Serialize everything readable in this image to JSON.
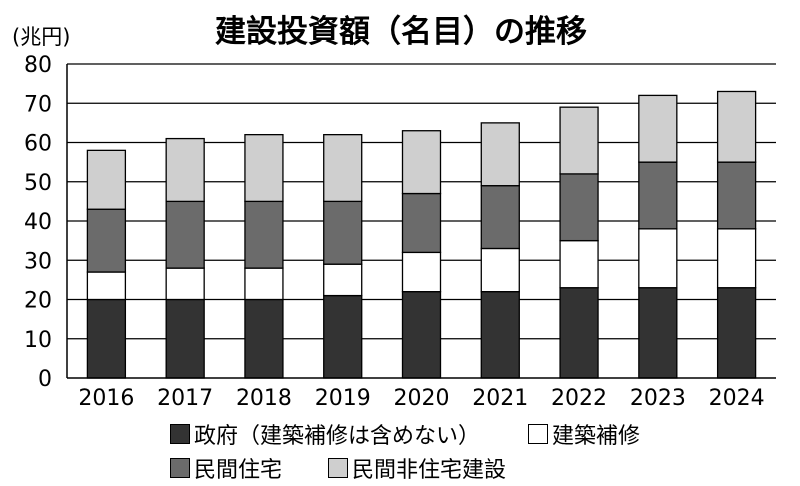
{
  "chart_data": {
    "type": "bar",
    "stacked": true,
    "title": "建設投資額（名目）の推移",
    "unit_label": "(兆円)",
    "categories": [
      "2016",
      "2017",
      "2018",
      "2019",
      "2020",
      "2021",
      "2022",
      "2023",
      "2024"
    ],
    "ylim": [
      0,
      80
    ],
    "yticks": [
      0,
      10,
      20,
      30,
      40,
      50,
      60,
      70,
      80
    ],
    "grid": true,
    "legend_position": "bottom",
    "series": [
      {
        "name": "政府（建築補修は含めない）",
        "color": "#333333",
        "values": [
          20,
          20,
          20,
          21,
          22,
          22,
          23,
          23,
          23
        ]
      },
      {
        "name": "建築補修",
        "color": "#ffffff",
        "values": [
          7,
          8,
          8,
          8,
          10,
          11,
          12,
          15,
          15
        ]
      },
      {
        "name": "民間住宅",
        "color": "#6b6b6b",
        "values": [
          16,
          17,
          17,
          16,
          15,
          16,
          17,
          17,
          17
        ]
      },
      {
        "name": "民間非住宅建設",
        "color": "#cfcfcf",
        "values": [
          15,
          16,
          17,
          17,
          16,
          16,
          17,
          17,
          18
        ]
      }
    ]
  }
}
